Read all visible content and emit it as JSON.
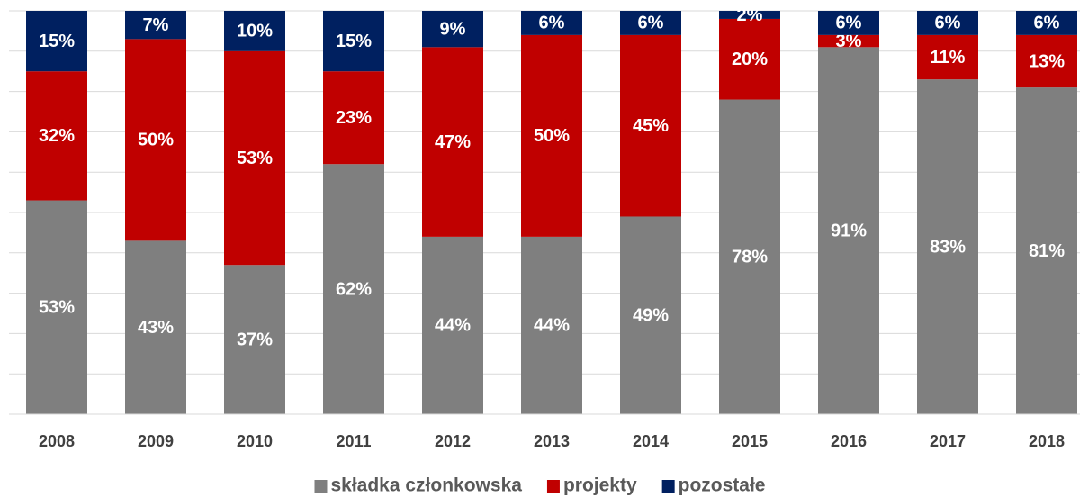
{
  "chart_data": {
    "type": "stacked-bar",
    "categories": [
      "2008",
      "2009",
      "2010",
      "2011",
      "2012",
      "2013",
      "2014",
      "2015",
      "2016",
      "2017",
      "2018"
    ],
    "series": [
      {
        "name": "składka członkowska",
        "color": "#7f7f7f",
        "values": [
          53,
          43,
          37,
          62,
          44,
          44,
          49,
          78,
          91,
          83,
          81
        ],
        "value_labels": [
          "53%",
          "43%",
          "37%",
          "62%",
          "44%",
          "44%",
          "49%",
          "78%",
          "91%",
          "83%",
          "81%"
        ]
      },
      {
        "name": "projekty",
        "color": "#c00000",
        "values": [
          32,
          50,
          53,
          23,
          47,
          50,
          45,
          20,
          3,
          11,
          13
        ],
        "value_labels": [
          "32%",
          "50%",
          "53%",
          "23%",
          "47%",
          "50%",
          "45%",
          "20%",
          "3%",
          "11%",
          "13%"
        ]
      },
      {
        "name": "pozostałe",
        "color": "#002060",
        "values": [
          15,
          7,
          10,
          15,
          9,
          6,
          6,
          2,
          6,
          6,
          6
        ],
        "value_labels": [
          "15%",
          "7%",
          "10%",
          "15%",
          "9%",
          "6%",
          "6%",
          "2%",
          "6%",
          "6%",
          "6%"
        ]
      }
    ],
    "ylim": [
      0,
      100
    ],
    "yticks": [
      0,
      10,
      20,
      30,
      40,
      50,
      60,
      70,
      80,
      90,
      100
    ],
    "grid": true,
    "legend": "bottom"
  }
}
